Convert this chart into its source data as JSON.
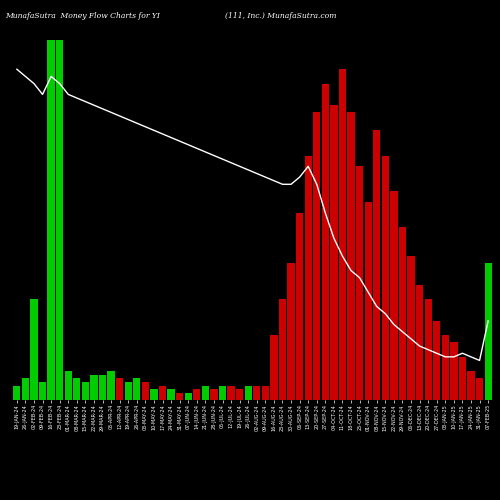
{
  "title_left": "MunafaSutra  Money Flow Charts for YI",
  "title_right": "(111, Inc.) MunafaSutra.com",
  "background_color": "#000000",
  "bar_color_positive": "#00cc00",
  "bar_color_negative": "#cc0000",
  "line_color": "#ffffff",
  "categories": [
    "19-JAN-24",
    "26-JAN-24",
    "02-FEB-24",
    "09-FEB-24",
    "16-FEB-24",
    "23-FEB-24",
    "01-MAR-24",
    "08-MAR-24",
    "15-MAR-24",
    "22-MAR-24",
    "29-MAR-24",
    "05-APR-24",
    "12-APR-24",
    "19-APR-24",
    "26-APR-24",
    "03-MAY-24",
    "10-MAY-24",
    "17-MAY-24",
    "24-MAY-24",
    "31-MAY-24",
    "07-JUN-24",
    "14-JUN-24",
    "21-JUN-24",
    "28-JUN-24",
    "05-JUL-24",
    "12-JUL-24",
    "19-JUL-24",
    "26-JUL-24",
    "02-AUG-24",
    "09-AUG-24",
    "16-AUG-24",
    "23-AUG-24",
    "30-AUG-24",
    "06-SEP-24",
    "13-SEP-24",
    "20-SEP-24",
    "27-SEP-24",
    "04-OCT-24",
    "11-OCT-24",
    "18-OCT-24",
    "25-OCT-24",
    "01-NOV-24",
    "08-NOV-24",
    "15-NOV-24",
    "22-NOV-24",
    "29-NOV-24",
    "06-DEC-24",
    "13-DEC-24",
    "20-DEC-24",
    "27-DEC-24",
    "03-JAN-25",
    "10-JAN-25",
    "17-JAN-25",
    "24-JAN-25",
    "31-JAN-25",
    "07-FEB-25"
  ],
  "values": [
    4,
    6,
    28,
    5,
    100,
    100,
    8,
    6,
    5,
    7,
    7,
    8,
    6,
    5,
    6,
    5,
    3,
    4,
    3,
    2,
    2,
    3,
    4,
    3,
    4,
    4,
    3,
    4,
    4,
    4,
    18,
    28,
    38,
    52,
    68,
    80,
    88,
    82,
    92,
    80,
    65,
    55,
    75,
    68,
    58,
    48,
    40,
    32,
    28,
    22,
    18,
    16,
    12,
    8,
    6,
    38
  ],
  "colors": [
    "g",
    "g",
    "g",
    "g",
    "g",
    "g",
    "g",
    "g",
    "g",
    "g",
    "g",
    "g",
    "r",
    "g",
    "g",
    "r",
    "g",
    "r",
    "g",
    "r",
    "g",
    "r",
    "g",
    "r",
    "g",
    "r",
    "r",
    "g",
    "r",
    "r",
    "r",
    "r",
    "r",
    "r",
    "r",
    "r",
    "r",
    "r",
    "r",
    "r",
    "r",
    "r",
    "r",
    "r",
    "r",
    "r",
    "r",
    "r",
    "r",
    "r",
    "r",
    "r",
    "r",
    "r",
    "r",
    "g"
  ],
  "line_y": [
    92,
    90,
    88,
    85,
    90,
    88,
    85,
    84,
    83,
    82,
    81,
    80,
    79,
    78,
    77,
    76,
    75,
    74,
    73,
    72,
    71,
    70,
    69,
    68,
    67,
    66,
    65,
    64,
    63,
    62,
    61,
    60,
    60,
    62,
    65,
    60,
    52,
    45,
    40,
    36,
    34,
    30,
    26,
    24,
    21,
    19,
    17,
    15,
    14,
    13,
    12,
    12,
    13,
    12,
    11,
    22
  ],
  "figsize": [
    5.0,
    5.0
  ],
  "dpi": 100
}
